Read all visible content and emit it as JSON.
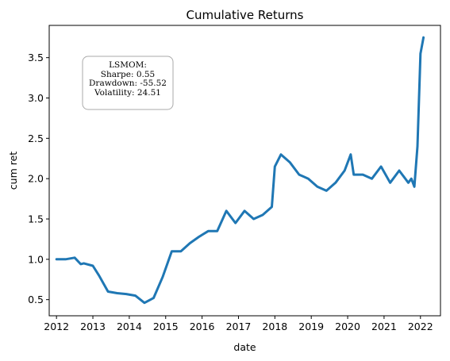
{
  "chart_data": {
    "type": "line",
    "title": "Cumulative Returns",
    "xlabel": "date",
    "ylabel": "cum ret",
    "xlim": [
      2011.8,
      2022.55
    ],
    "ylim": [
      0.3,
      3.9
    ],
    "x_ticks": [
      "2012",
      "2013",
      "2014",
      "2015",
      "2016",
      "2017",
      "2018",
      "2019",
      "2020",
      "2021",
      "2022"
    ],
    "y_ticks": [
      "0.5",
      "1.0",
      "1.5",
      "2.0",
      "2.5",
      "3.0",
      "3.5"
    ],
    "grid": false,
    "series_color": "#1f77b4",
    "annotation": {
      "lines": [
        "LSMOM:",
        "Sharpe: 0.55",
        "Drawdown: -55.52",
        "Volatility: 24.51"
      ]
    },
    "series": [
      {
        "x": [
          "2012-01",
          "2012-04",
          "2012-07",
          "2012-09",
          "2012-10",
          "2013-01",
          "2013-03",
          "2013-06",
          "2013-09",
          "2013-12",
          "2014-03",
          "2014-06",
          "2014-09",
          "2014-12",
          "2015-03",
          "2015-06",
          "2015-09",
          "2015-12",
          "2016-03",
          "2016-06",
          "2016-09",
          "2016-12",
          "2017-03",
          "2017-06",
          "2017-09",
          "2017-12",
          "2018-01",
          "2018-03",
          "2018-06",
          "2018-09",
          "2018-12",
          "2019-03",
          "2019-06",
          "2019-09",
          "2019-12",
          "2020-02",
          "2020-03",
          "2020-06",
          "2020-09",
          "2020-12",
          "2021-03",
          "2021-06",
          "2021-09",
          "2021-10",
          "2021-11",
          "2021-12",
          "2022-01",
          "2022-02"
        ],
        "y": [
          1.0,
          1.0,
          1.02,
          0.94,
          0.95,
          0.92,
          0.8,
          0.6,
          0.58,
          0.57,
          0.55,
          0.46,
          0.52,
          0.78,
          1.1,
          1.1,
          1.2,
          1.28,
          1.35,
          1.35,
          1.6,
          1.45,
          1.6,
          1.5,
          1.55,
          1.65,
          2.15,
          2.3,
          2.2,
          2.05,
          2.0,
          1.9,
          1.85,
          1.95,
          2.1,
          2.3,
          2.05,
          2.05,
          2.0,
          2.15,
          1.95,
          2.1,
          1.95,
          2.0,
          1.9,
          2.4,
          3.55,
          3.75
        ]
      }
    ]
  }
}
